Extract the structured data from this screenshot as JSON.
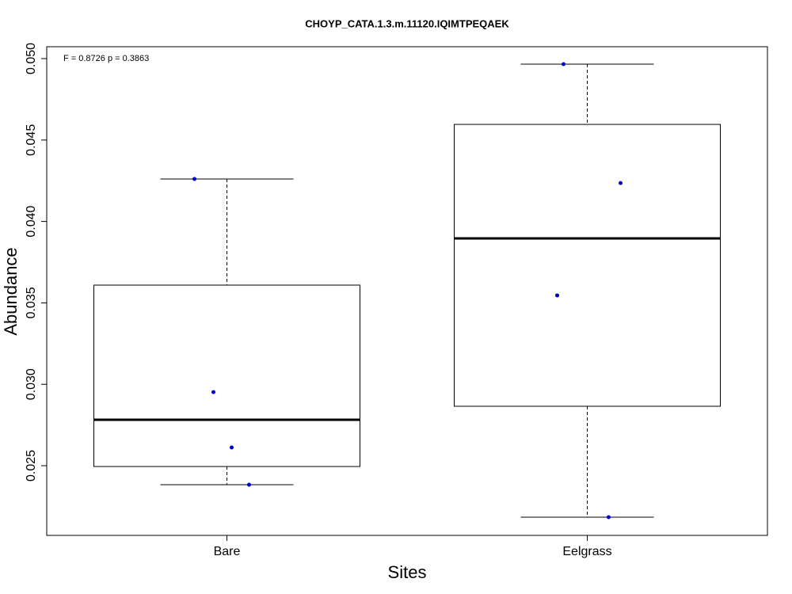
{
  "chart_data": {
    "type": "box",
    "title": "CHOYP_CATA.1.3.m.11120.IQIMTPEQAEK",
    "annotation": "F = 0.8726 p = 0.3863",
    "x_label": "Sites",
    "y_label": "Abundance",
    "categories": [
      "Bare",
      "Eelgrass"
    ],
    "boxes": [
      {
        "min": 0.02383,
        "q1": 0.02495,
        "median": 0.02782,
        "q3": 0.03609,
        "max": 0.04261
      },
      {
        "min": 0.02184,
        "q1": 0.02865,
        "median": 0.03896,
        "q3": 0.04596,
        "max": 0.04966
      }
    ],
    "points": [
      [
        0.04261,
        0.02952,
        0.02612,
        0.02383
      ],
      [
        0.04966,
        0.04236,
        0.03546,
        0.02184
      ]
    ],
    "point_color": "#0000cc",
    "ylim": [
      0.02072,
      0.05073
    ],
    "yticks": [
      0.025,
      {
        "value": 0.03,
        "label": "0.030"
      },
      0.035,
      {
        "value": 0.04,
        "label": "0.040"
      },
      0.045,
      {
        "value": 0.05,
        "label": "0.050"
      }
    ]
  }
}
